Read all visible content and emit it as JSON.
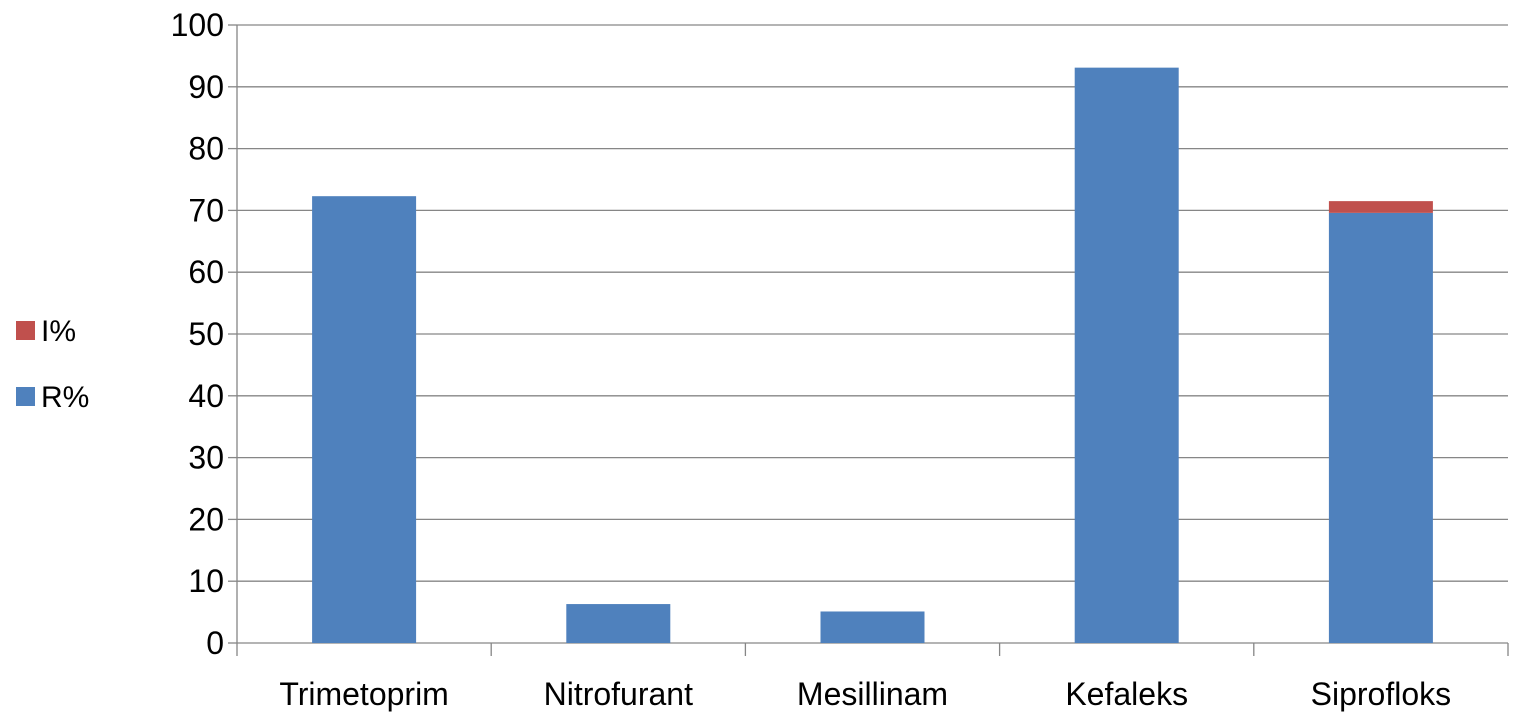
{
  "chart_data": {
    "type": "bar",
    "stacked": true,
    "categories": [
      "Trimetoprim",
      "Nitrofurant",
      "Mesillinam",
      "Kefaleks",
      "Siprofloks"
    ],
    "series": [
      {
        "name": "R%",
        "color": "#4F81BD",
        "values": [
          72.3,
          6.3,
          5.1,
          93.1,
          69.6
        ]
      },
      {
        "name": "I%",
        "color": "#C0504D",
        "values": [
          0,
          0,
          0,
          0,
          1.9
        ]
      }
    ],
    "ylim": [
      0,
      100
    ],
    "yticks": [
      0,
      10,
      20,
      30,
      40,
      50,
      60,
      70,
      80,
      90,
      100
    ],
    "grid": true,
    "legend": {
      "placement": "left",
      "order": [
        "I%",
        "R%"
      ]
    },
    "title": "",
    "xlabel": "",
    "ylabel": ""
  }
}
